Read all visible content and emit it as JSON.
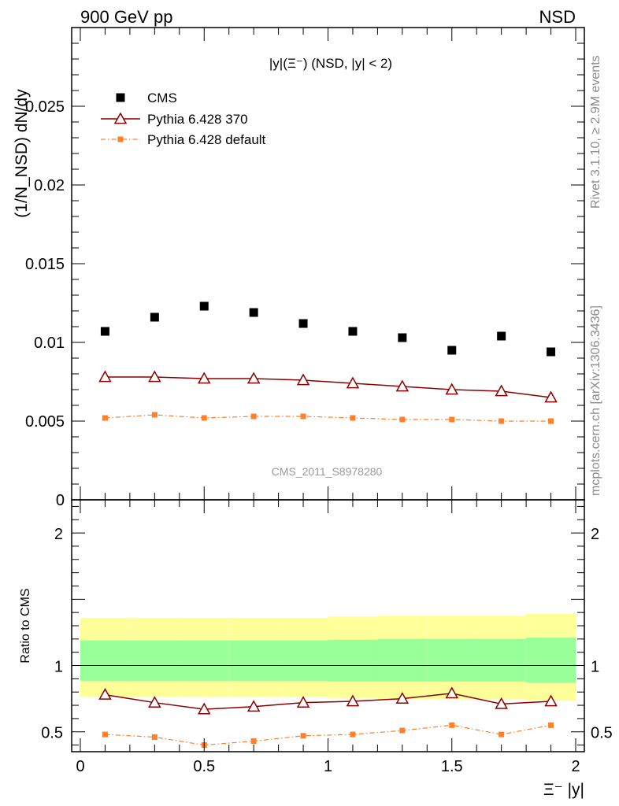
{
  "header": {
    "left": "900 GeV pp",
    "right": "NSD"
  },
  "side_labels": {
    "rivet": "Rivet 3.1.10, ≥ 2.9M events",
    "mcplots": "mcplots.cern.ch [arXiv:1306.3436]"
  },
  "watermark": "CMS_2011_S8978280",
  "colors": {
    "cms": "#000000",
    "py370": "#8b0000",
    "pydef": "#ff7f2a",
    "band_yellow": "#ffff99",
    "band_green": "#99ff99"
  },
  "chart_data": [
    {
      "type": "scatter",
      "title": "|y|(Ξ⁻) (NSD, |y| < 2)",
      "ylabel": "(1/N_NSD) dN/dy",
      "xlim": [
        0,
        2
      ],
      "ylim": [
        0,
        0.03
      ],
      "yticks": [
        "0",
        "0.005",
        "0.01",
        "0.015",
        "0.02",
        "0.025"
      ],
      "x": [
        0.1,
        0.3,
        0.5,
        0.7,
        0.9,
        1.1,
        1.3,
        1.5,
        1.7,
        1.9
      ],
      "legend_position": "top-left",
      "series": [
        {
          "name": "CMS",
          "style": "square-markers",
          "values": [
            0.0107,
            0.0116,
            0.0123,
            0.0119,
            0.0112,
            0.0107,
            0.0103,
            0.0095,
            0.0104,
            0.0094
          ]
        },
        {
          "name": "Pythia 6.428 370",
          "style": "line-open-triangles",
          "values": [
            0.0078,
            0.0078,
            0.0077,
            0.0077,
            0.0076,
            0.0074,
            0.0072,
            0.007,
            0.0069,
            0.0065
          ]
        },
        {
          "name": "Pythia 6.428 default",
          "style": "dashdot-small-squares",
          "values": [
            0.0052,
            0.0054,
            0.0052,
            0.0053,
            0.0053,
            0.0052,
            0.0051,
            0.0051,
            0.005,
            0.005
          ]
        }
      ]
    },
    {
      "type": "line",
      "ylabel": "Ratio to CMS",
      "xlabel": "Ξ⁻ |y|",
      "xlim": [
        0,
        2
      ],
      "ylim": [
        0.35,
        2.25
      ],
      "xticks": [
        "0",
        "0.5",
        "1",
        "1.5",
        "2"
      ],
      "yticks": [
        "0.5",
        "1",
        "2"
      ],
      "x": [
        0.1,
        0.3,
        0.5,
        0.7,
        0.9,
        1.1,
        1.3,
        1.5,
        1.7,
        1.9
      ],
      "bands": {
        "edges": [
          0.0,
          0.2,
          0.4,
          0.6,
          0.8,
          1.0,
          1.2,
          1.4,
          1.6,
          1.8,
          2.0
        ],
        "yellow_low": [
          0.765,
          0.765,
          0.765,
          0.765,
          0.765,
          0.755,
          0.745,
          0.745,
          0.745,
          0.735
        ],
        "yellow_high": [
          1.36,
          1.36,
          1.36,
          1.36,
          1.36,
          1.37,
          1.375,
          1.375,
          1.375,
          1.39
        ],
        "green_low": [
          0.885,
          0.885,
          0.885,
          0.885,
          0.885,
          0.88,
          0.88,
          0.88,
          0.88,
          0.87
        ],
        "green_high": [
          1.19,
          1.19,
          1.19,
          1.19,
          1.19,
          1.195,
          1.2,
          1.2,
          1.2,
          1.21
        ]
      },
      "series": [
        {
          "name": "Pythia 6.428 370",
          "values": [
            0.78,
            0.72,
            0.67,
            0.69,
            0.72,
            0.73,
            0.75,
            0.79,
            0.71,
            0.73
          ]
        },
        {
          "name": "Pythia 6.428 default",
          "values": [
            0.48,
            0.46,
            0.4,
            0.43,
            0.47,
            0.48,
            0.51,
            0.55,
            0.48,
            0.55
          ]
        }
      ]
    }
  ]
}
